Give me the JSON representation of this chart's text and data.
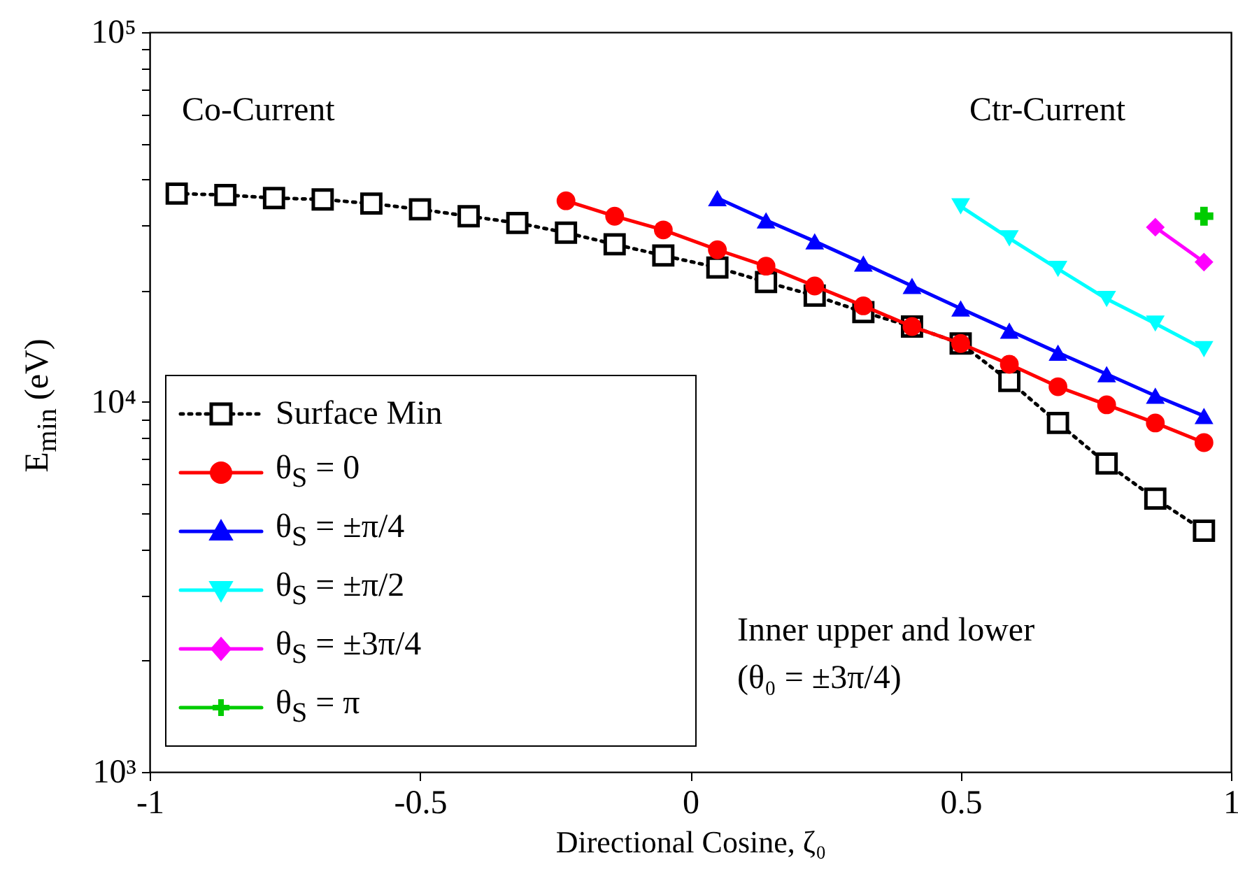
{
  "chart_data": {
    "type": "line",
    "xlabel": "Directional Cosine, ζ₀",
    "ylabel": "E$_{min}$ (eV)",
    "log": "y",
    "xlim": [
      -1,
      1
    ],
    "xticks": [
      -1,
      -0.5,
      0,
      0.5,
      1
    ],
    "ylim": [
      1000,
      100000
    ],
    "yticks": [
      {
        "value": 1000,
        "label": "10³"
      },
      {
        "value": 2000,
        "label": null
      },
      {
        "value": 3000,
        "label": null
      },
      {
        "value": 4000,
        "label": null
      },
      {
        "value": 5000,
        "label": null
      },
      {
        "value": 6000,
        "label": null
      },
      {
        "value": 7000,
        "label": null
      },
      {
        "value": 8000,
        "label": null
      },
      {
        "value": 9000,
        "label": null
      },
      {
        "value": 10000,
        "label": "10⁴"
      },
      {
        "value": 20000,
        "label": null
      },
      {
        "value": 30000,
        "label": null
      },
      {
        "value": 40000,
        "label": null
      },
      {
        "value": 50000,
        "label": null
      },
      {
        "value": 60000,
        "label": null
      },
      {
        "value": 70000,
        "label": null
      },
      {
        "value": 80000,
        "label": null
      },
      {
        "value": 90000,
        "label": null
      },
      {
        "value": 100000,
        "label": "10⁵"
      }
    ],
    "grid": false,
    "legend": "bottom left",
    "annotations": [
      "Co-Current",
      "Ctr-Current",
      "Inner upper and lower",
      "(θ₀ = ±3π/4)"
    ],
    "series": [
      {
        "name": "Surface Min",
        "color": "#000000",
        "marker": "square",
        "line_style": "dotted",
        "x": [
          -0.95,
          -0.86,
          -0.77,
          -0.68,
          -0.59,
          -0.5,
          -0.41,
          -0.32,
          -0.23,
          -0.14,
          -0.05,
          0.05,
          0.14,
          0.23,
          0.32,
          0.41,
          0.5,
          0.59,
          0.68,
          0.77,
          0.86,
          0.95
        ],
        "values": [
          36600,
          36300,
          35600,
          35300,
          34400,
          33200,
          31800,
          30500,
          28700,
          26700,
          24900,
          23100,
          21100,
          19400,
          17500,
          16000,
          14400,
          11400,
          8780,
          6820,
          5480,
          4490
        ]
      },
      {
        "name": "θ$_{S}$ = 0",
        "color": "#ff0000",
        "marker": "circle",
        "line_style": "solid",
        "x": [
          -0.23,
          -0.14,
          -0.05,
          0.05,
          0.14,
          0.23,
          0.32,
          0.41,
          0.5,
          0.59,
          0.68,
          0.77,
          0.86,
          0.95
        ],
        "values": [
          35000,
          31800,
          29200,
          25800,
          23300,
          20600,
          18200,
          16000,
          14400,
          12650,
          11000,
          9830,
          8780,
          7770
        ]
      },
      {
        "name": "θ$_{S}$ = ±π/4",
        "color": "#0000ff",
        "marker": "triangle",
        "line_style": "solid",
        "x": [
          0.05,
          0.14,
          0.23,
          0.32,
          0.41,
          0.5,
          0.59,
          0.68,
          0.77,
          0.86,
          0.95
        ],
        "values": [
          35600,
          31000,
          27200,
          23700,
          20600,
          17900,
          15600,
          13600,
          11900,
          10400,
          9170
        ]
      },
      {
        "name": "θ$_{S}$ = ±π/2",
        "color": "#00ffff",
        "marker": "triangle-down",
        "line_style": "solid",
        "x": [
          0.5,
          0.59,
          0.68,
          0.77,
          0.86,
          0.95
        ],
        "values": [
          33800,
          27700,
          22900,
          19000,
          16300,
          13900
        ]
      },
      {
        "name": "θ$_{S}$ = ±3π/4",
        "color": "#ff00ff",
        "marker": "diamond",
        "line_style": "solid",
        "x": [
          0.86,
          0.95
        ],
        "values": [
          29700,
          23900
        ]
      },
      {
        "name": "θ$_{S}$ = π",
        "color": "#00cc00",
        "marker": "cross",
        "line_style": "solid",
        "x": [
          0.95
        ],
        "values": [
          31800
        ]
      }
    ]
  }
}
